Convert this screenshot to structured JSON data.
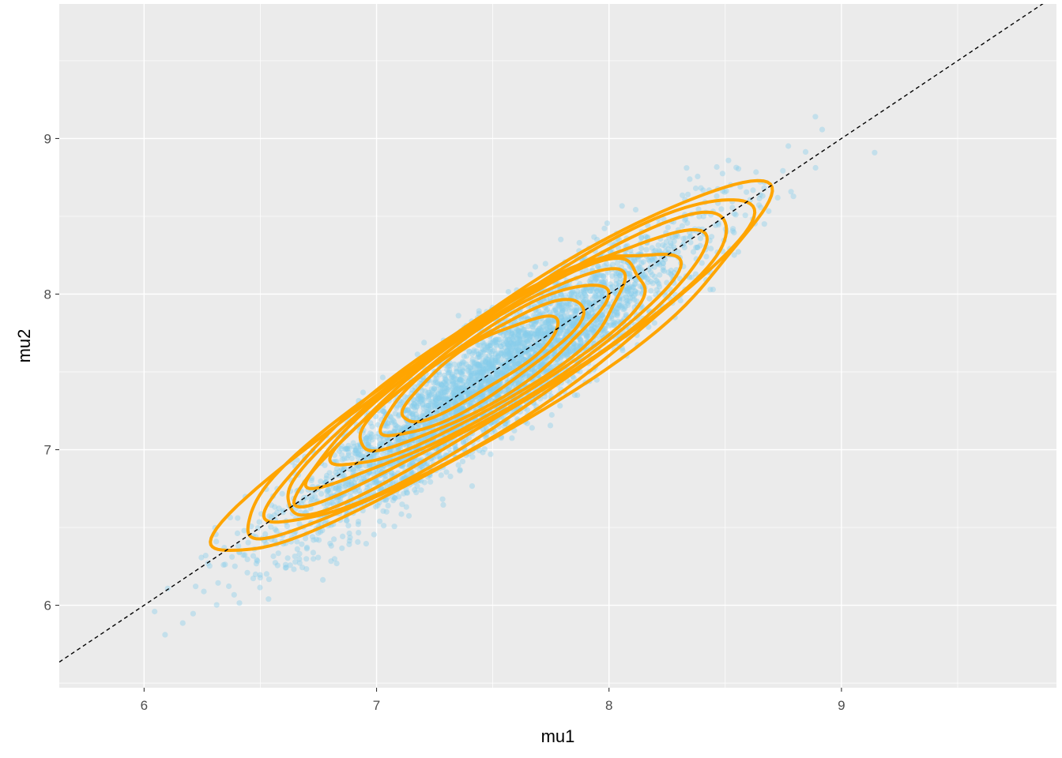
{
  "chart_data": {
    "type": "scatter",
    "title": "",
    "xlabel": "mu1",
    "ylabel": "mu2",
    "xlim": [
      5.635,
      9.925
    ],
    "ylim": [
      5.47,
      9.865
    ],
    "x_ticks": [
      6,
      7,
      8,
      9
    ],
    "y_ticks": [
      6,
      7,
      8,
      9
    ],
    "x_tick_labels": [
      "6",
      "7",
      "8",
      "9"
    ],
    "y_tick_labels": [
      "6",
      "7",
      "8",
      "9"
    ],
    "grid": true,
    "legend": "none",
    "panel_background": "#EBEBEB",
    "grid_color": "#FFFFFF",
    "points": {
      "distribution": "bivariate-normal",
      "n_points": 4000,
      "mean": [
        7.5,
        7.45
      ],
      "sd": [
        0.44,
        0.49
      ],
      "correlation": 0.93,
      "x_range": [
        5.85,
        9.7
      ],
      "y_range": [
        5.66,
        9.67
      ],
      "color": "#87CEEB",
      "alpha": 0.4
    },
    "density_contours": {
      "color": "#FFA500",
      "levels": 10,
      "outer_extent": {
        "x": [
          6.37,
          8.63
        ],
        "y": [
          6.34,
          8.63
        ]
      },
      "peak": [
        7.35,
        7.55
      ]
    },
    "reference_line": {
      "intercept": 0,
      "slope": 1,
      "linetype": "dashed",
      "color": "#000000"
    }
  }
}
